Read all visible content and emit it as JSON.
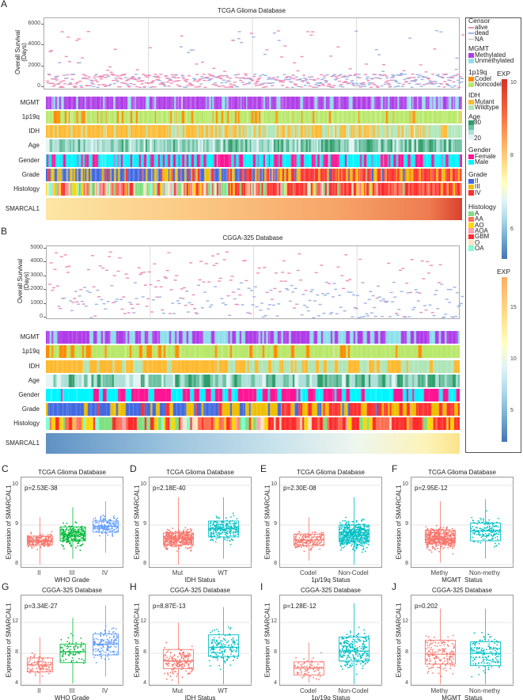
{
  "panelA": {
    "letter": "A",
    "title": "TCGA Glioma Database",
    "y_axis_label": "Overall Survival\n(Days)",
    "y_ticks": [
      "0",
      "2000",
      "4000",
      "6000"
    ],
    "y_tick_values": [
      0,
      2000,
      4000,
      6000
    ],
    "rows": [
      "MGMT",
      "1p19q",
      "IDH",
      "Age",
      "Gender",
      "Grade",
      "Histology"
    ],
    "expression_row": "SMARCAL1"
  },
  "panelB": {
    "letter": "B",
    "title": "CGGA-325 Database",
    "y_axis_label": "Overall Survival\n(Days)",
    "y_ticks": [
      "0",
      "1000",
      "2000",
      "3000",
      "4000",
      "5000"
    ],
    "y_tick_values": [
      0,
      1000,
      2000,
      3000,
      4000,
      5000
    ],
    "rows": [
      "MGMT",
      "1p19q",
      "IDH",
      "Age",
      "Gender",
      "Grade",
      "Histology"
    ],
    "expression_row": "SMARCAL1"
  },
  "legend": {
    "censor": {
      "title": "Censor",
      "items": [
        {
          "label": "alive",
          "color": "#f08cb4"
        },
        {
          "label": "dead",
          "color": "#9db4e6"
        },
        {
          "label": "NA",
          "color": "#bbbbbb"
        }
      ]
    },
    "mgmt": {
      "title": "MGMT",
      "items": [
        {
          "label": "Methylated",
          "color": "#b03ce8"
        },
        {
          "label": "Unmethylated",
          "color": "#8fe0ec"
        }
      ]
    },
    "p19q": {
      "title": "1p19q",
      "items": [
        {
          "label": "Codel",
          "color": "#ff8c00"
        },
        {
          "label": "Noncodel",
          "color": "#b8e86a"
        }
      ]
    },
    "idh": {
      "title": "IDH",
      "items": [
        {
          "label": "Mutant",
          "color": "#ffb92e"
        },
        {
          "label": "Wildtype",
          "color": "#aee6b8"
        }
      ]
    },
    "age": {
      "title": "Age",
      "high": "80",
      "low": "20",
      "colors": [
        "#2e9e6a",
        "#6cc2a2",
        "#ade0d8",
        "#e2f4f4"
      ]
    },
    "gender": {
      "title": "Gender",
      "items": [
        {
          "label": "Female",
          "color": "#ff1493"
        },
        {
          "label": "Male",
          "color": "#00f5ff"
        }
      ]
    },
    "grade": {
      "title": "Grade",
      "items": [
        {
          "label": "II",
          "color": "#4169e1"
        },
        {
          "label": "III",
          "color": "#f0c000"
        },
        {
          "label": "IV",
          "color": "#ff3030"
        }
      ]
    },
    "histology": {
      "title": "Histology",
      "items": [
        {
          "label": "A",
          "color": "#7ee07e"
        },
        {
          "label": "AA",
          "color": "#ff7050"
        },
        {
          "label": "AO",
          "color": "#ffd700"
        },
        {
          "label": "AOA",
          "color": "#ffa0b0"
        },
        {
          "label": "GBM",
          "color": "#ff2a2a"
        },
        {
          "label": "O",
          "color": "#ffe4c4"
        },
        {
          "label": "OA",
          "color": "#7fffd4"
        }
      ]
    },
    "expA": {
      "title": "EXP",
      "ticks": [
        "10",
        "8",
        "6"
      ],
      "tick_values": [
        10,
        8,
        6
      ],
      "range": [
        5.2,
        10.1
      ]
    },
    "expB": {
      "title": "EXP",
      "ticks": [
        "15",
        "10",
        "5"
      ],
      "tick_values": [
        15,
        10,
        5
      ],
      "range": [
        2,
        18
      ]
    }
  },
  "chart_data": [
    {
      "type": "box",
      "letter": "C",
      "title": "TCGA Glioma Database",
      "xlabel": "WHO Grade",
      "ylabel": "Expression of SMARCAL1",
      "pvalue": "p=2.53E-38",
      "ylim": [
        7.9,
        10.2
      ],
      "y_ticks": [
        8,
        9,
        10
      ],
      "groups": [
        {
          "name": "II",
          "color": "#F8766D",
          "q1": 8.5,
          "median": 8.6,
          "q3": 8.72,
          "lo": 8.0,
          "hi": 9.2,
          "n": 220
        },
        {
          "name": "III",
          "color": "#00BA38",
          "q1": 8.6,
          "median": 8.75,
          "q3": 8.95,
          "lo": 8.15,
          "hi": 9.45,
          "n": 250
        },
        {
          "name": "IV",
          "color": "#619CFF",
          "q1": 8.82,
          "median": 8.97,
          "q3": 9.1,
          "lo": 8.3,
          "hi": 9.6,
          "n": 150
        }
      ]
    },
    {
      "type": "box",
      "letter": "D",
      "title": "TCGA Glioma Database",
      "xlabel": "IDH Status",
      "ylabel": "Expression of SMARCAL1",
      "pvalue": "p=2.18E-40",
      "ylim": [
        7.9,
        10.2
      ],
      "y_ticks": [
        8,
        9,
        10
      ],
      "groups": [
        {
          "name": "Mut",
          "color": "#F8766D",
          "q1": 8.5,
          "median": 8.65,
          "q3": 8.8,
          "lo": 8.0,
          "hi": 9.7,
          "n": 420
        },
        {
          "name": "WT",
          "color": "#00BFC4",
          "q1": 8.7,
          "median": 8.9,
          "q3": 9.1,
          "lo": 8.15,
          "hi": 9.7,
          "n": 230
        }
      ]
    },
    {
      "type": "box",
      "letter": "E",
      "title": "TCGA Glioma Database",
      "xlabel": "1p/19q Status",
      "ylabel": "Expression of SMARCAL1",
      "pvalue": "p=2.30E-08",
      "ylim": [
        7.9,
        10.2
      ],
      "y_ticks": [
        8,
        9,
        10
      ],
      "groups": [
        {
          "name": "Codel",
          "color": "#F8766D",
          "q1": 8.48,
          "median": 8.62,
          "q3": 8.77,
          "lo": 8.1,
          "hi": 9.2,
          "n": 170
        },
        {
          "name": "Non-Codel",
          "color": "#00BFC4",
          "q1": 8.57,
          "median": 8.75,
          "q3": 9.0,
          "lo": 8.0,
          "hi": 9.7,
          "n": 480
        }
      ]
    },
    {
      "type": "box",
      "letter": "F",
      "title": "TCGA Glioma Database",
      "xlabel": "MGMT  Status",
      "ylabel": "Expression of SMARCAL1",
      "pvalue": "p=2.95E-12",
      "ylim": [
        7.9,
        10.2
      ],
      "y_ticks": [
        8,
        9,
        10
      ],
      "groups": [
        {
          "name": "Methy",
          "color": "#F8766D",
          "q1": 8.55,
          "median": 8.65,
          "q3": 8.87,
          "lo": 8.05,
          "hi": 9.6,
          "n": 480
        },
        {
          "name": "Non-methy",
          "color": "#00BFC4",
          "q1": 8.6,
          "median": 8.85,
          "q3": 9.05,
          "lo": 8.15,
          "hi": 9.65,
          "n": 150
        }
      ]
    },
    {
      "type": "box",
      "letter": "G",
      "title": "CGGA-325 Database",
      "xlabel": "WHO Grade",
      "ylabel": "Expression of SMARCAL1",
      "pvalue": "p=3.34E-27",
      "ylim": [
        3.7,
        15.5
      ],
      "y_ticks": [
        4,
        8,
        12
      ],
      "groups": [
        {
          "name": "II",
          "color": "#F8766D",
          "q1": 5.6,
          "median": 6.5,
          "q3": 7.4,
          "lo": 4.0,
          "hi": 10.1,
          "n": 100
        },
        {
          "name": "III",
          "color": "#00BA38",
          "q1": 6.8,
          "median": 8.2,
          "q3": 9.2,
          "lo": 4.1,
          "hi": 12.6,
          "n": 80
        },
        {
          "name": "IV",
          "color": "#619CFF",
          "q1": 7.8,
          "median": 9.2,
          "q3": 10.5,
          "lo": 5.0,
          "hi": 14.2,
          "n": 140
        }
      ]
    },
    {
      "type": "box",
      "letter": "H",
      "title": "CGGA-325 Database",
      "xlabel": "IDH Status",
      "ylabel": "Expression of SMARCAL1",
      "pvalue": "p=8.87E-13",
      "ylim": [
        3.7,
        15.5
      ],
      "y_ticks": [
        4,
        8,
        12
      ],
      "groups": [
        {
          "name": "Mut",
          "color": "#F8766D",
          "q1": 6.0,
          "median": 7.0,
          "q3": 8.5,
          "lo": 4.0,
          "hi": 12.0,
          "n": 170
        },
        {
          "name": "WT",
          "color": "#00BFC4",
          "q1": 7.6,
          "median": 8.8,
          "q3": 10.4,
          "lo": 4.0,
          "hi": 14.0,
          "n": 150
        }
      ]
    },
    {
      "type": "box",
      "letter": "I",
      "title": "CGGA-325 Database",
      "xlabel": "1p/19q Status",
      "ylabel": "Expression of SMARCAL1",
      "pvalue": "p=1.28E-12",
      "ylim": [
        3.7,
        15.5
      ],
      "y_ticks": [
        4,
        8,
        12
      ],
      "groups": [
        {
          "name": "Codel",
          "color": "#F8766D",
          "q1": 5.2,
          "median": 6.1,
          "q3": 6.9,
          "lo": 4.2,
          "hi": 9.4,
          "n": 70
        },
        {
          "name": "Non-Codel",
          "color": "#00BFC4",
          "q1": 7.0,
          "median": 8.3,
          "q3": 10.1,
          "lo": 4.0,
          "hi": 14.5,
          "n": 250
        }
      ]
    },
    {
      "type": "box",
      "letter": "J",
      "title": "CGGA-325 Database",
      "xlabel": "MGMT  Status",
      "ylabel": "Expression of SMARCAL1",
      "pvalue": "p=0.202",
      "ylim": [
        3.7,
        15.5
      ],
      "y_ticks": [
        4,
        8,
        12
      ],
      "groups": [
        {
          "name": "Methy",
          "color": "#F8766D",
          "q1": 6.6,
          "median": 7.9,
          "q3": 9.7,
          "lo": 4.0,
          "hi": 13.8,
          "n": 160
        },
        {
          "name": "Non-methy",
          "color": "#00BFC4",
          "q1": 6.4,
          "median": 8.0,
          "q3": 9.5,
          "lo": 4.0,
          "hi": 13.8,
          "n": 150
        }
      ]
    }
  ]
}
